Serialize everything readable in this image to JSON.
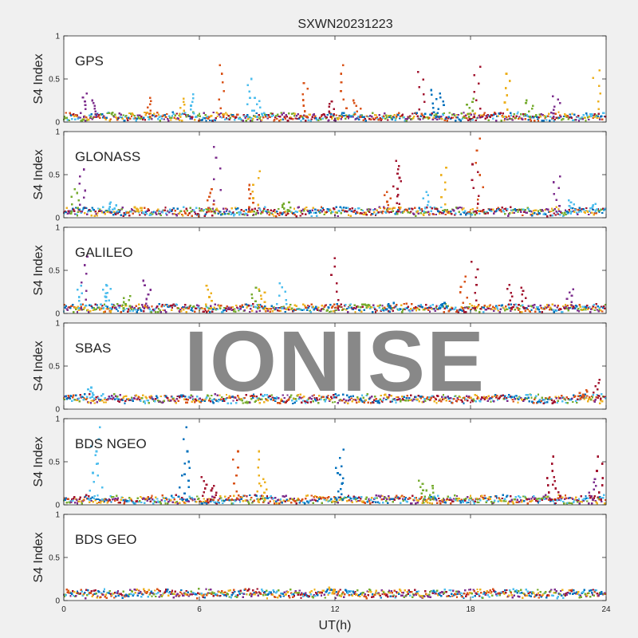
{
  "chart_data": {
    "type": "scatter",
    "title": "SXWN20231223",
    "xlabel": "UT(h)",
    "ylabel": "S4 Index",
    "xlim": [
      0,
      24
    ],
    "ylim": [
      0,
      1
    ],
    "xticks": [
      0,
      6,
      12,
      18,
      24
    ],
    "yticks": [
      0,
      0.5,
      1
    ],
    "xtick_labels": [
      "0",
      "6",
      "12",
      "18",
      "24"
    ],
    "ytick_labels": [
      "0",
      "0.5",
      "1"
    ],
    "watermark": "IONISE",
    "series_colors": [
      "#0072BD",
      "#D95319",
      "#EDB120",
      "#7E2F8E",
      "#77AC30",
      "#4DBEEE",
      "#A2142F"
    ],
    "panels": [
      {
        "name": "GPS",
        "baseline": 0.06,
        "spikes": [
          {
            "x": 0.9,
            "y": 0.33,
            "c": 3
          },
          {
            "x": 1.3,
            "y": 0.25,
            "c": 3
          },
          {
            "x": 3.8,
            "y": 0.28,
            "c": 1
          },
          {
            "x": 5.2,
            "y": 0.27,
            "c": 2
          },
          {
            "x": 5.8,
            "y": 0.32,
            "c": 5
          },
          {
            "x": 7.0,
            "y": 0.66,
            "c": 1
          },
          {
            "x": 8.2,
            "y": 0.5,
            "c": 5
          },
          {
            "x": 8.6,
            "y": 0.28,
            "c": 5
          },
          {
            "x": 10.7,
            "y": 0.45,
            "c": 1
          },
          {
            "x": 11.8,
            "y": 0.24,
            "c": 6
          },
          {
            "x": 12.4,
            "y": 0.66,
            "c": 1
          },
          {
            "x": 13.0,
            "y": 0.25,
            "c": 1
          },
          {
            "x": 15.8,
            "y": 0.58,
            "c": 6
          },
          {
            "x": 16.4,
            "y": 0.37,
            "c": 0
          },
          {
            "x": 16.7,
            "y": 0.33,
            "c": 0
          },
          {
            "x": 18.3,
            "y": 0.64,
            "c": 6
          },
          {
            "x": 18.0,
            "y": 0.27,
            "c": 4
          },
          {
            "x": 19.6,
            "y": 0.56,
            "c": 2
          },
          {
            "x": 20.6,
            "y": 0.25,
            "c": 4
          },
          {
            "x": 21.8,
            "y": 0.3,
            "c": 3
          },
          {
            "x": 23.6,
            "y": 0.6,
            "c": 2
          }
        ]
      },
      {
        "name": "GLONASS",
        "baseline": 0.07,
        "spikes": [
          {
            "x": 0.8,
            "y": 0.56,
            "c": 3
          },
          {
            "x": 0.5,
            "y": 0.33,
            "c": 4
          },
          {
            "x": 2.2,
            "y": 0.18,
            "c": 5
          },
          {
            "x": 3.3,
            "y": 0.12,
            "c": 2
          },
          {
            "x": 6.5,
            "y": 0.33,
            "c": 1
          },
          {
            "x": 6.8,
            "y": 0.82,
            "c": 3
          },
          {
            "x": 8.5,
            "y": 0.54,
            "c": 2
          },
          {
            "x": 8.3,
            "y": 0.38,
            "c": 1
          },
          {
            "x": 9.8,
            "y": 0.18,
            "c": 4
          },
          {
            "x": 14.3,
            "y": 0.3,
            "c": 1
          },
          {
            "x": 14.7,
            "y": 0.66,
            "c": 6
          },
          {
            "x": 14.9,
            "y": 0.6,
            "c": 6
          },
          {
            "x": 16.0,
            "y": 0.3,
            "c": 5
          },
          {
            "x": 16.8,
            "y": 0.58,
            "c": 2
          },
          {
            "x": 18.4,
            "y": 0.92,
            "c": 1
          },
          {
            "x": 18.2,
            "y": 0.62,
            "c": 6
          },
          {
            "x": 21.8,
            "y": 0.48,
            "c": 3
          },
          {
            "x": 22.5,
            "y": 0.2,
            "c": 5
          },
          {
            "x": 23.5,
            "y": 0.16,
            "c": 5
          }
        ]
      },
      {
        "name": "GALILEO",
        "baseline": 0.06,
        "spikes": [
          {
            "x": 0.9,
            "y": 0.66,
            "c": 3
          },
          {
            "x": 0.7,
            "y": 0.32,
            "c": 5
          },
          {
            "x": 1.8,
            "y": 0.32,
            "c": 5
          },
          {
            "x": 2.0,
            "y": 0.33,
            "c": 5
          },
          {
            "x": 2.8,
            "y": 0.2,
            "c": 4
          },
          {
            "x": 3.7,
            "y": 0.38,
            "c": 3
          },
          {
            "x": 6.4,
            "y": 0.32,
            "c": 2
          },
          {
            "x": 8.5,
            "y": 0.3,
            "c": 4
          },
          {
            "x": 8.8,
            "y": 0.28,
            "c": 2
          },
          {
            "x": 9.7,
            "y": 0.35,
            "c": 5
          },
          {
            "x": 12.0,
            "y": 0.64,
            "c": 6
          },
          {
            "x": 14.5,
            "y": 0.12,
            "c": 0
          },
          {
            "x": 16.8,
            "y": 0.12,
            "c": 0
          },
          {
            "x": 17.7,
            "y": 0.43,
            "c": 1
          },
          {
            "x": 18.2,
            "y": 0.6,
            "c": 6
          },
          {
            "x": 19.7,
            "y": 0.33,
            "c": 6
          },
          {
            "x": 20.3,
            "y": 0.3,
            "c": 6
          },
          {
            "x": 22.4,
            "y": 0.28,
            "c": 3
          }
        ]
      },
      {
        "name": "SBAS",
        "baseline": 0.12,
        "spikes": [
          {
            "x": 1.2,
            "y": 0.25,
            "c": 5
          },
          {
            "x": 23.6,
            "y": 0.34,
            "c": 6
          },
          {
            "x": 23.0,
            "y": 0.22,
            "c": 1
          }
        ]
      },
      {
        "name": "BDS NGEO",
        "baseline": 0.06,
        "spikes": [
          {
            "x": 1.6,
            "y": 0.9,
            "c": 5
          },
          {
            "x": 1.3,
            "y": 0.68,
            "c": 5
          },
          {
            "x": 5.3,
            "y": 0.9,
            "c": 0
          },
          {
            "x": 5.4,
            "y": 0.5,
            "c": 0
          },
          {
            "x": 6.2,
            "y": 0.32,
            "c": 6
          },
          {
            "x": 6.6,
            "y": 0.22,
            "c": 6
          },
          {
            "x": 7.6,
            "y": 0.62,
            "c": 1
          },
          {
            "x": 8.7,
            "y": 0.62,
            "c": 2
          },
          {
            "x": 8.8,
            "y": 0.3,
            "c": 2
          },
          {
            "x": 12.3,
            "y": 0.64,
            "c": 0
          },
          {
            "x": 12.2,
            "y": 0.43,
            "c": 0
          },
          {
            "x": 15.8,
            "y": 0.28,
            "c": 4
          },
          {
            "x": 16.2,
            "y": 0.22,
            "c": 4
          },
          {
            "x": 21.5,
            "y": 0.56,
            "c": 6
          },
          {
            "x": 21.8,
            "y": 0.32,
            "c": 6
          },
          {
            "x": 23.4,
            "y": 0.3,
            "c": 3
          },
          {
            "x": 23.7,
            "y": 0.56,
            "c": 6
          }
        ]
      },
      {
        "name": "BDS GEO",
        "baseline": 0.08,
        "spikes": [
          {
            "x": 11.9,
            "y": 0.15,
            "c": 2
          }
        ]
      }
    ]
  }
}
